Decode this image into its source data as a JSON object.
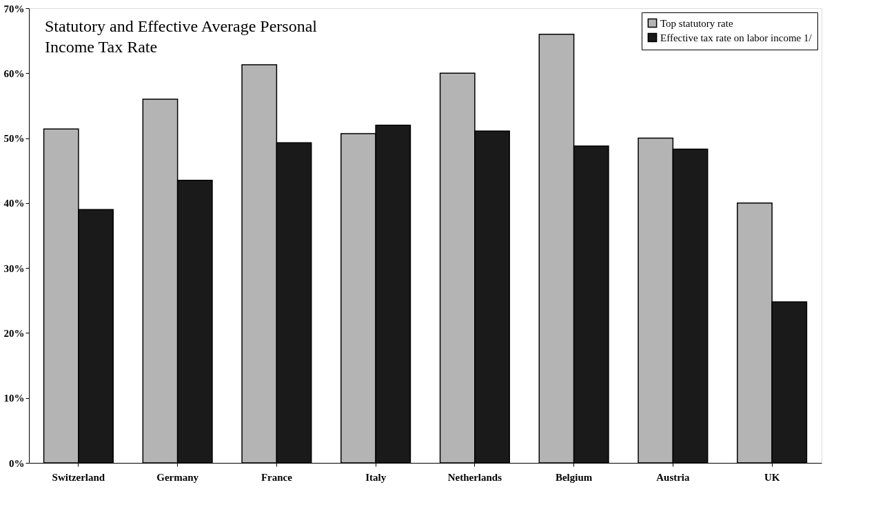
{
  "chart_data": {
    "type": "bar",
    "title": "Statutory and Effective Average Personal\nIncome Tax Rate",
    "categories": [
      "Switzerland",
      "Germany",
      "France",
      "Italy",
      "Netherlands",
      "Belgium",
      "Austria",
      "UK"
    ],
    "series": [
      {
        "name": "Top statutory rate",
        "color": "#b4b4b4",
        "values": [
          51.4,
          56,
          61.3,
          50.7,
          60,
          66,
          50,
          40
        ]
      },
      {
        "name": "Effective tax rate on labor income 1/",
        "color": "#1a1a1a",
        "values": [
          39,
          43.5,
          49.3,
          52,
          51.1,
          48.8,
          48.3,
          24.8
        ]
      }
    ],
    "ylim": [
      0,
      70
    ],
    "yticks": [
      {
        "value": 0,
        "label": "0%"
      },
      {
        "value": 10,
        "label": "10%"
      },
      {
        "value": 20,
        "label": "20%"
      },
      {
        "value": 30,
        "label": "30%"
      },
      {
        "value": 40,
        "label": "40%"
      },
      {
        "value": 50,
        "label": "50%"
      },
      {
        "value": 60,
        "label": "60%"
      },
      {
        "value": 70,
        "label": "70%"
      }
    ],
    "grid": false,
    "legend": "top right"
  }
}
